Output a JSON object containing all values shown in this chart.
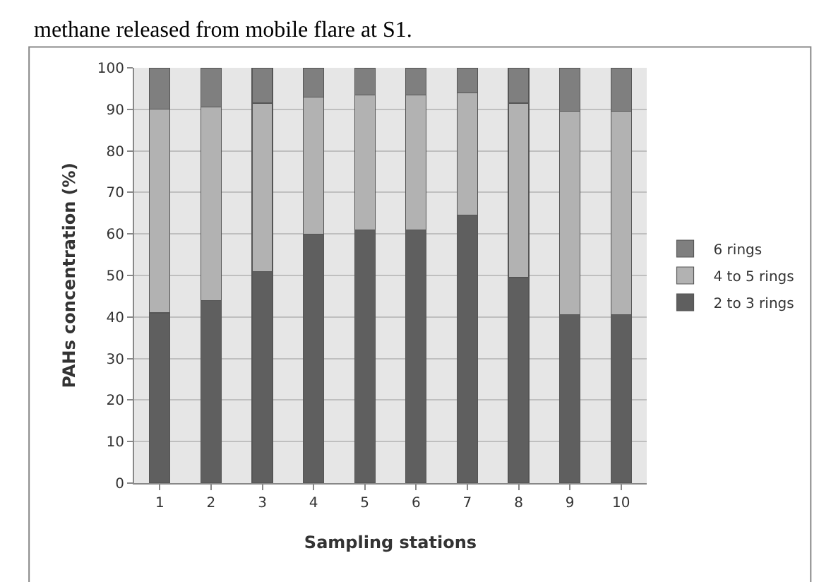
{
  "chart_data": {
    "type": "bar",
    "stacked": true,
    "xlabel": "Sampling stations",
    "ylabel": "PAHs concentration (%)",
    "annotations": [
      "methane released from mobile flare at S1."
    ],
    "categories": [
      "1",
      "2",
      "3",
      "4",
      "5",
      "6",
      "7",
      "8",
      "9",
      "10"
    ],
    "series": [
      {
        "name": "2 to 3 rings",
        "color": "#5f5f5f",
        "values": [
          41,
          44,
          51,
          60,
          61,
          61,
          64.5,
          49.5,
          40.5,
          40.5
        ]
      },
      {
        "name": "4 to 5 rings",
        "color": "#b2b2b2",
        "values": [
          49,
          46.5,
          40.5,
          33,
          32.5,
          32.5,
          29.5,
          42,
          49,
          49
        ]
      },
      {
        "name": "6 rings",
        "color": "#7f7f7f",
        "values": [
          10,
          9.5,
          8.5,
          7,
          6.5,
          6.5,
          6,
          8.5,
          10.5,
          10.5
        ]
      }
    ],
    "ylim": [
      0,
      100
    ],
    "yticks": [
      0,
      10,
      20,
      30,
      40,
      50,
      60,
      70,
      80,
      90,
      100
    ],
    "grid": "y",
    "legend": "right"
  }
}
